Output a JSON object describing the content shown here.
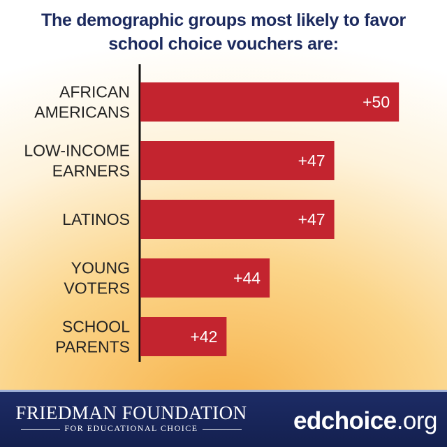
{
  "chart_data": {
    "type": "bar",
    "orientation": "horizontal",
    "title_lines": [
      "The demographic groups most likely to favor",
      "school choice vouchers are:"
    ],
    "categories": [
      [
        "AFRICAN",
        "AMERICANS"
      ],
      [
        "LOW-INCOME",
        "EARNERS"
      ],
      [
        "LATINOS"
      ],
      [
        "YOUNG",
        "VOTERS"
      ],
      [
        "SCHOOL",
        "PARENTS"
      ]
    ],
    "values": [
      50,
      47,
      47,
      44,
      42
    ],
    "value_labels": [
      "+50",
      "+47",
      "+47",
      "+44",
      "+42"
    ],
    "xlim": [
      38,
      51
    ],
    "grid": false,
    "legend": "none",
    "bar_color": "#c3242f"
  },
  "footer": {
    "org_name": "FRIEDMAN FOUNDATION",
    "org_subtitle": "FOR EDUCATIONAL CHOICE",
    "site_name": "edchoice",
    "site_tld": ".org"
  },
  "colors": {
    "title": "#1c2a5e",
    "footer_bg": "#1d2c66"
  }
}
